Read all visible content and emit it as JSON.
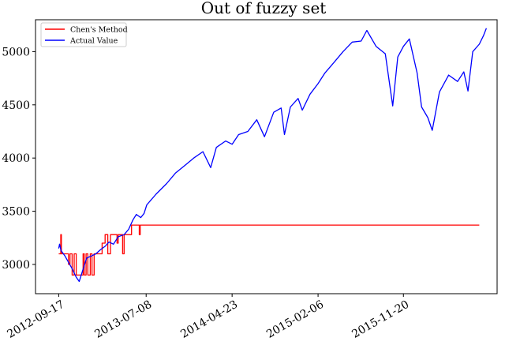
{
  "chart_data": {
    "type": "line",
    "title": "Out of fuzzy set",
    "xlabel": "",
    "ylabel": "",
    "x_ticks": [
      "2012-09-17",
      "2013-07-08",
      "2014-04-23",
      "2015-02-06",
      "2015-11-20"
    ],
    "x_range": [
      "2012-07-01",
      "2016-09-30"
    ],
    "y_ticks": [
      3000,
      3500,
      4000,
      4500,
      5000
    ],
    "ylim": [
      2725,
      5300
    ],
    "legend": {
      "placement": "top-left",
      "entries": [
        "Chen's Method",
        "Actual Value"
      ]
    },
    "grid": false,
    "series": [
      {
        "name": "Chen's Method",
        "color": "#ff0000",
        "points": [
          [
            "2012-09-17",
            3100
          ],
          [
            "2012-09-24",
            3280
          ],
          [
            "2012-09-26",
            3100
          ],
          [
            "2012-10-15",
            3100
          ],
          [
            "2012-10-20",
            3000
          ],
          [
            "2012-10-25",
            3100
          ],
          [
            "2012-11-01",
            2900
          ],
          [
            "2012-11-08",
            3100
          ],
          [
            "2012-11-15",
            2900
          ],
          [
            "2012-12-03",
            2900
          ],
          [
            "2012-12-08",
            3100
          ],
          [
            "2012-12-12",
            2900
          ],
          [
            "2012-12-18",
            3100
          ],
          [
            "2012-12-24",
            2900
          ],
          [
            "2013-01-01",
            3100
          ],
          [
            "2013-01-07",
            2900
          ],
          [
            "2013-01-14",
            3100
          ],
          [
            "2013-01-25",
            3100
          ],
          [
            "2013-02-05",
            3100
          ],
          [
            "2013-02-10",
            3200
          ],
          [
            "2013-02-20",
            3280
          ],
          [
            "2013-03-01",
            3100
          ],
          [
            "2013-03-10",
            3280
          ],
          [
            "2013-04-01",
            3200
          ],
          [
            "2013-04-05",
            3280
          ],
          [
            "2013-04-20",
            3100
          ],
          [
            "2013-04-25",
            3280
          ],
          [
            "2013-05-10",
            3280
          ],
          [
            "2013-05-20",
            3370
          ],
          [
            "2013-06-10",
            3370
          ],
          [
            "2013-06-15",
            3280
          ],
          [
            "2013-06-18",
            3370
          ],
          [
            "2016-08-01",
            3370
          ]
        ]
      },
      {
        "name": "Actual Value",
        "color": "#0000ff",
        "points": [
          [
            "2012-09-17",
            3150
          ],
          [
            "2012-09-20",
            3190
          ],
          [
            "2012-09-25",
            3130
          ],
          [
            "2012-10-08",
            3080
          ],
          [
            "2012-10-20",
            3020
          ],
          [
            "2012-11-01",
            2960
          ],
          [
            "2012-11-15",
            2880
          ],
          [
            "2012-11-25",
            2840
          ],
          [
            "2012-12-05",
            2930
          ],
          [
            "2012-12-12",
            2990
          ],
          [
            "2012-12-20",
            3060
          ],
          [
            "2013-01-05",
            3080
          ],
          [
            "2013-01-20",
            3100
          ],
          [
            "2013-02-05",
            3140
          ],
          [
            "2013-02-20",
            3170
          ],
          [
            "2013-03-05",
            3210
          ],
          [
            "2013-03-20",
            3190
          ],
          [
            "2013-04-05",
            3260
          ],
          [
            "2013-04-25",
            3280
          ],
          [
            "2013-05-10",
            3330
          ],
          [
            "2013-05-25",
            3420
          ],
          [
            "2013-06-05",
            3470
          ],
          [
            "2013-06-20",
            3440
          ],
          [
            "2013-07-01",
            3480
          ],
          [
            "2013-07-10",
            3560
          ],
          [
            "2013-08-10",
            3660
          ],
          [
            "2013-09-15",
            3760
          ],
          [
            "2013-10-15",
            3860
          ],
          [
            "2013-11-15",
            3930
          ],
          [
            "2013-12-15",
            4000
          ],
          [
            "2014-01-15",
            4060
          ],
          [
            "2014-02-10",
            3910
          ],
          [
            "2014-03-01",
            4100
          ],
          [
            "2014-04-01",
            4160
          ],
          [
            "2014-04-23",
            4130
          ],
          [
            "2014-05-15",
            4220
          ],
          [
            "2014-06-15",
            4250
          ],
          [
            "2014-07-15",
            4360
          ],
          [
            "2014-08-10",
            4200
          ],
          [
            "2014-09-10",
            4430
          ],
          [
            "2014-10-05",
            4470
          ],
          [
            "2014-10-16",
            4220
          ],
          [
            "2014-11-05",
            4480
          ],
          [
            "2014-12-01",
            4560
          ],
          [
            "2014-12-15",
            4450
          ],
          [
            "2015-01-10",
            4600
          ],
          [
            "2015-02-06",
            4700
          ],
          [
            "2015-03-01",
            4800
          ],
          [
            "2015-04-01",
            4900
          ],
          [
            "2015-05-01",
            5000
          ],
          [
            "2015-06-01",
            5090
          ],
          [
            "2015-07-01",
            5100
          ],
          [
            "2015-07-20",
            5200
          ],
          [
            "2015-08-20",
            5050
          ],
          [
            "2015-09-20",
            4980
          ],
          [
            "2015-10-15",
            4490
          ],
          [
            "2015-11-01",
            4950
          ],
          [
            "2015-11-20",
            5050
          ],
          [
            "2015-12-10",
            5120
          ],
          [
            "2016-01-05",
            4800
          ],
          [
            "2016-01-20",
            4480
          ],
          [
            "2016-02-10",
            4380
          ],
          [
            "2016-02-25",
            4260
          ],
          [
            "2016-03-20",
            4620
          ],
          [
            "2016-04-20",
            4780
          ],
          [
            "2016-05-20",
            4720
          ],
          [
            "2016-06-10",
            4810
          ],
          [
            "2016-06-24",
            4630
          ],
          [
            "2016-07-10",
            5000
          ],
          [
            "2016-08-01",
            5070
          ],
          [
            "2016-08-15",
            5150
          ],
          [
            "2016-08-25",
            5220
          ]
        ]
      }
    ]
  }
}
